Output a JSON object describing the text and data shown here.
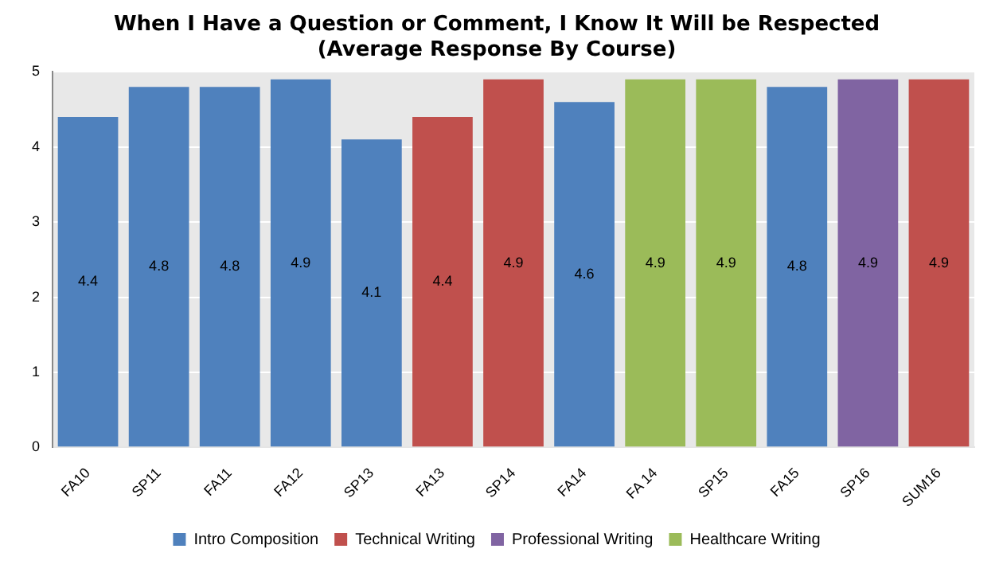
{
  "chart_data": {
    "type": "bar",
    "title": "When I Have a Question or Comment, I Know It Will be Respected",
    "subtitle": "(Average Response By Course)",
    "categories": [
      "FA10",
      "SP11",
      "FA11",
      "FA12",
      "SP13",
      "FA13",
      "SP14",
      "FA14",
      "FA 14",
      "SP15",
      "FA15",
      "SP16",
      "SUM16"
    ],
    "series": [
      {
        "name": "Intro Composition",
        "color": "#4f81bd",
        "values": [
          4.4,
          4.8,
          4.8,
          4.9,
          4.1,
          null,
          null,
          4.6,
          null,
          null,
          4.8,
          null,
          null
        ]
      },
      {
        "name": "Technical Writing",
        "color": "#c0504d",
        "values": [
          null,
          null,
          null,
          null,
          null,
          4.4,
          4.9,
          null,
          null,
          null,
          null,
          null,
          4.9
        ]
      },
      {
        "name": "Professional Writing",
        "color": "#8064a2",
        "values": [
          null,
          null,
          null,
          null,
          null,
          null,
          null,
          null,
          null,
          null,
          null,
          4.9,
          null
        ]
      },
      {
        "name": "Healthcare Writing",
        "color": "#9bbb59",
        "values": [
          null,
          null,
          null,
          null,
          null,
          null,
          null,
          null,
          4.9,
          4.9,
          null,
          null,
          null
        ]
      }
    ],
    "ylim": [
      0,
      5
    ],
    "yticks": [
      0,
      1,
      2,
      3,
      4,
      5
    ],
    "grid": "y",
    "legend": "bottom",
    "data_labels": true
  }
}
